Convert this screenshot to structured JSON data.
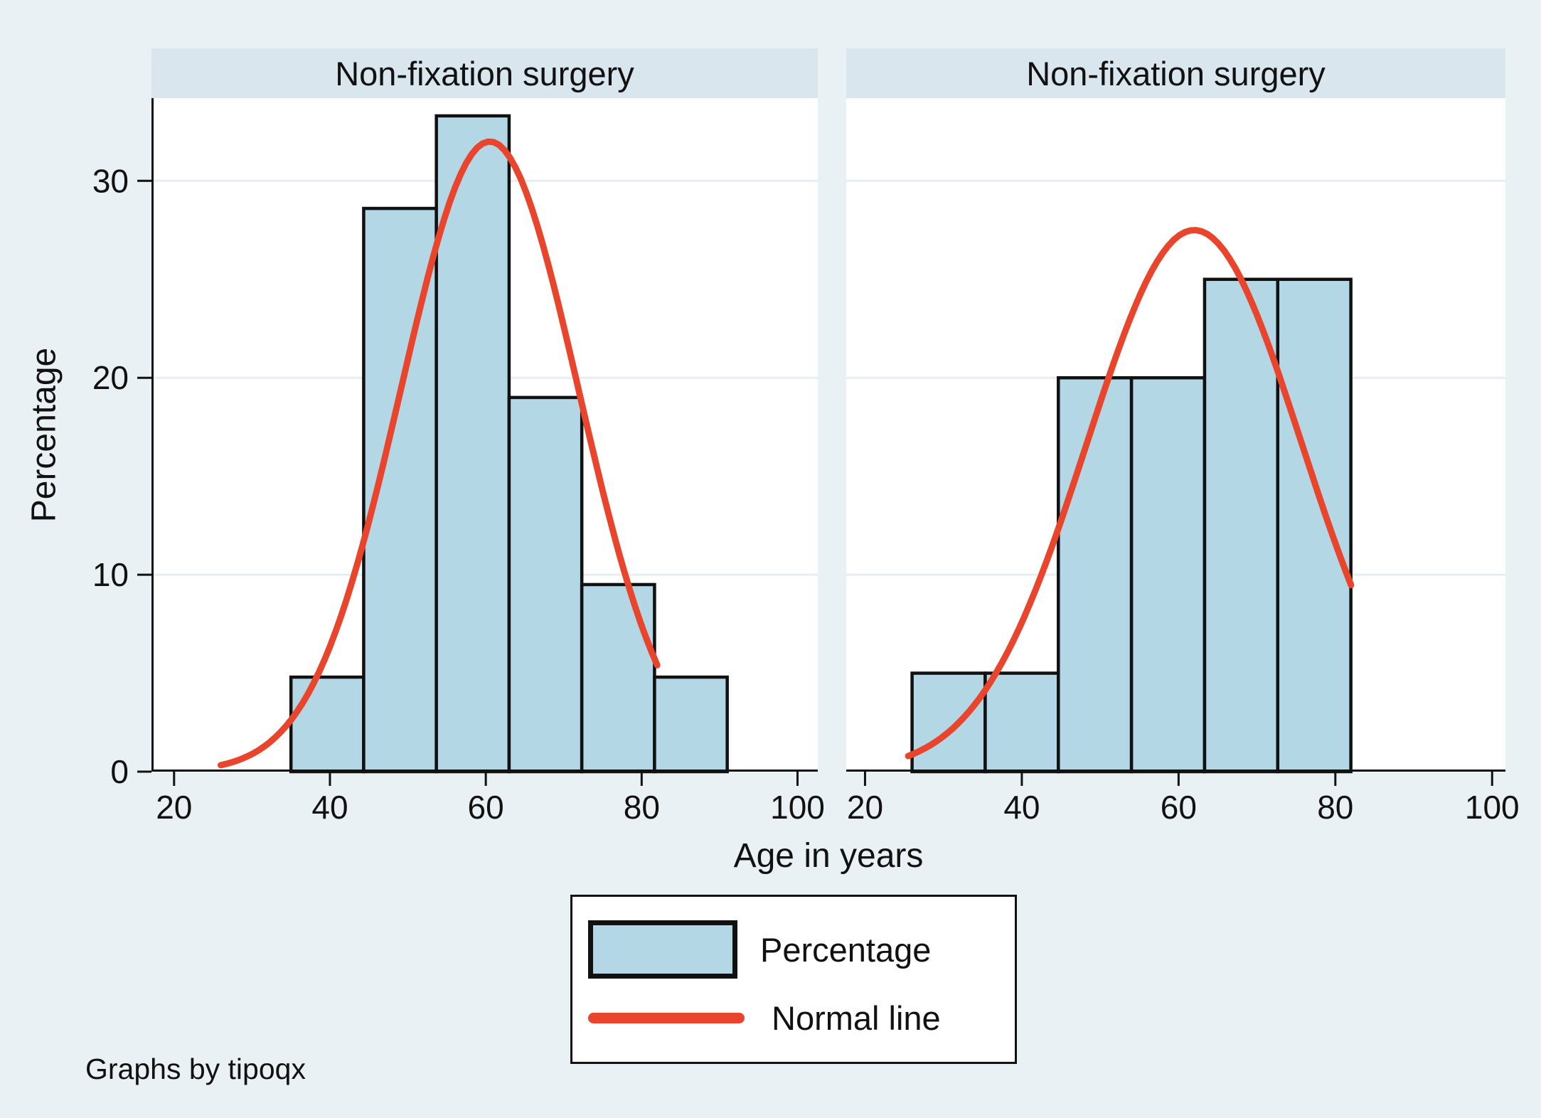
{
  "colors": {
    "background": "#eaf1f5",
    "panel_title_band": "#d9e6ed",
    "plot_background": "#ffffff",
    "gridline": "#e7edf2",
    "bar_fill": "#b4d7e6",
    "bar_border": "#111111",
    "normal_line": "#e8452c",
    "text": "#111111"
  },
  "axes": {
    "x_label": "Age in years",
    "y_label": "Percentage"
  },
  "legend": {
    "items": [
      {
        "swatch": "bar",
        "label": "Percentage"
      },
      {
        "swatch": "line",
        "label": "Normal line"
      }
    ]
  },
  "footer": {
    "note": "Graphs by tipoqx"
  },
  "chart_data": [
    {
      "type": "bar",
      "subtype": "histogram_with_normal_curve",
      "title": "Non-fixation surgery",
      "xlabel": "Age in years",
      "ylabel": "Percentage",
      "x_ticks": [
        20,
        40,
        60,
        80,
        100
      ],
      "y_ticks": [
        0,
        10,
        20,
        30
      ],
      "xlim": [
        17.1,
        102.6
      ],
      "ylim": [
        0,
        34.2
      ],
      "grid": "horizontal",
      "show_y_axis": true,
      "bars": {
        "bin_start": 35,
        "bin_width": 9.33,
        "values_pct": [
          4.8,
          28.6,
          33.3,
          19.0,
          9.5,
          4.8
        ]
      },
      "normal_curve": {
        "mean": 60.5,
        "sd": 11.4,
        "peak_pct": 32,
        "x_range": [
          26,
          82
        ]
      }
    },
    {
      "type": "bar",
      "subtype": "histogram_with_normal_curve",
      "title": "Non-fixation surgery",
      "xlabel": "Age in years",
      "ylabel": "Percentage",
      "x_ticks": [
        20,
        40,
        60,
        80,
        100
      ],
      "y_ticks": [
        0,
        10,
        20,
        30
      ],
      "xlim": [
        17.6,
        101.7
      ],
      "ylim": [
        0,
        34.2
      ],
      "grid": "horizontal",
      "show_y_axis": false,
      "bars": {
        "bin_start": 26,
        "bin_width": 9.33,
        "values_pct": [
          5.0,
          5.0,
          20.0,
          20.0,
          25.0,
          25.0
        ]
      },
      "normal_curve": {
        "mean": 62,
        "sd": 13.7,
        "peak_pct": 27.5,
        "x_range": [
          25.5,
          82
        ]
      }
    }
  ]
}
